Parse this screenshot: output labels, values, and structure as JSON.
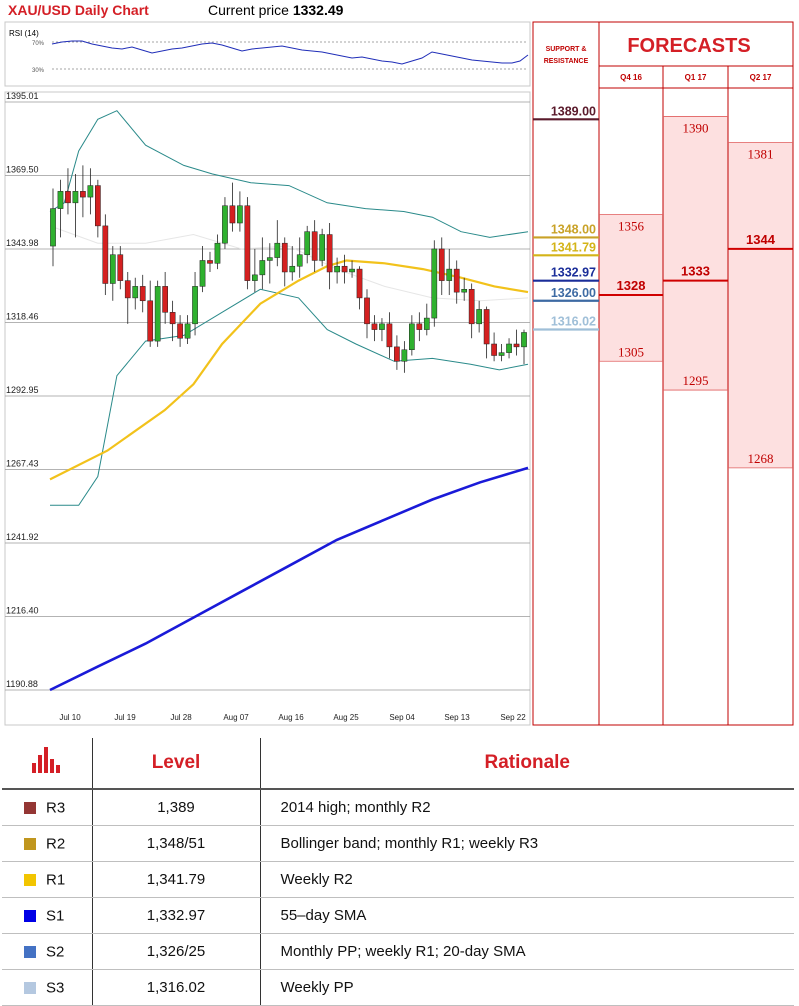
{
  "header": {
    "title": "XAU/USD Daily Chart",
    "price_label": "Current price",
    "price_value": "1332.49"
  },
  "rsi_panel": {
    "label": "RSI (14)",
    "upper_level": "70%",
    "lower_level": "30%"
  },
  "chart_data": {
    "type": "candlestick",
    "y_ticks": [
      "1395.01",
      "1369.50",
      "1343.98",
      "1318.46",
      "1292.95",
      "1267.43",
      "1241.92",
      "1216.40",
      "1190.88"
    ],
    "ylim": [
      1190.88,
      1395.01
    ],
    "x_ticks": [
      "Jul 10",
      "Jul 19",
      "Jul 28",
      "Aug 07",
      "Aug 16",
      "Aug 25",
      "Sep 04",
      "Sep 13",
      "Sep 22"
    ],
    "candles": [
      {
        "o": 1345,
        "h": 1365,
        "l": 1338,
        "c": 1358
      },
      {
        "o": 1358,
        "h": 1368,
        "l": 1348,
        "c": 1364
      },
      {
        "o": 1364,
        "h": 1372,
        "l": 1356,
        "c": 1360
      },
      {
        "o": 1360,
        "h": 1370,
        "l": 1348,
        "c": 1364
      },
      {
        "o": 1364,
        "h": 1373,
        "l": 1355,
        "c": 1362
      },
      {
        "o": 1362,
        "h": 1372,
        "l": 1356,
        "c": 1366
      },
      {
        "o": 1366,
        "h": 1368,
        "l": 1348,
        "c": 1352
      },
      {
        "o": 1352,
        "h": 1356,
        "l": 1328,
        "c": 1332
      },
      {
        "o": 1332,
        "h": 1345,
        "l": 1326,
        "c": 1342
      },
      {
        "o": 1342,
        "h": 1345,
        "l": 1330,
        "c": 1333
      },
      {
        "o": 1333,
        "h": 1336,
        "l": 1318,
        "c": 1327
      },
      {
        "o": 1327,
        "h": 1334,
        "l": 1323,
        "c": 1331
      },
      {
        "o": 1331,
        "h": 1335,
        "l": 1322,
        "c": 1326
      },
      {
        "o": 1326,
        "h": 1333,
        "l": 1310,
        "c": 1312
      },
      {
        "o": 1312,
        "h": 1333,
        "l": 1310,
        "c": 1331
      },
      {
        "o": 1331,
        "h": 1336,
        "l": 1318,
        "c": 1322
      },
      {
        "o": 1322,
        "h": 1326,
        "l": 1312,
        "c": 1318
      },
      {
        "o": 1318,
        "h": 1321,
        "l": 1310,
        "c": 1313
      },
      {
        "o": 1313,
        "h": 1321,
        "l": 1311,
        "c": 1318
      },
      {
        "o": 1318,
        "h": 1336,
        "l": 1314,
        "c": 1331
      },
      {
        "o": 1331,
        "h": 1345,
        "l": 1329,
        "c": 1340
      },
      {
        "o": 1340,
        "h": 1343,
        "l": 1336,
        "c": 1339
      },
      {
        "o": 1339,
        "h": 1349,
        "l": 1337,
        "c": 1346
      },
      {
        "o": 1346,
        "h": 1362,
        "l": 1344,
        "c": 1359
      },
      {
        "o": 1359,
        "h": 1367,
        "l": 1350,
        "c": 1353
      },
      {
        "o": 1353,
        "h": 1364,
        "l": 1350,
        "c": 1359
      },
      {
        "o": 1359,
        "h": 1362,
        "l": 1330,
        "c": 1333
      },
      {
        "o": 1333,
        "h": 1344,
        "l": 1329,
        "c": 1335
      },
      {
        "o": 1335,
        "h": 1348,
        "l": 1330,
        "c": 1340
      },
      {
        "o": 1340,
        "h": 1346,
        "l": 1332,
        "c": 1341
      },
      {
        "o": 1341,
        "h": 1354,
        "l": 1338,
        "c": 1346
      },
      {
        "o": 1346,
        "h": 1348,
        "l": 1331,
        "c": 1336
      },
      {
        "o": 1336,
        "h": 1345,
        "l": 1333,
        "c": 1338
      },
      {
        "o": 1338,
        "h": 1348,
        "l": 1334,
        "c": 1342
      },
      {
        "o": 1342,
        "h": 1352,
        "l": 1339,
        "c": 1350
      },
      {
        "o": 1350,
        "h": 1354,
        "l": 1336,
        "c": 1340
      },
      {
        "o": 1340,
        "h": 1351,
        "l": 1338,
        "c": 1349
      },
      {
        "o": 1349,
        "h": 1353,
        "l": 1330,
        "c": 1336
      },
      {
        "o": 1336,
        "h": 1341,
        "l": 1332,
        "c": 1338
      },
      {
        "o": 1338,
        "h": 1342,
        "l": 1332,
        "c": 1336
      },
      {
        "o": 1336,
        "h": 1340,
        "l": 1334,
        "c": 1337
      },
      {
        "o": 1337,
        "h": 1338,
        "l": 1323,
        "c": 1327
      },
      {
        "o": 1327,
        "h": 1330,
        "l": 1313,
        "c": 1318
      },
      {
        "o": 1318,
        "h": 1321,
        "l": 1312,
        "c": 1316
      },
      {
        "o": 1316,
        "h": 1320,
        "l": 1312,
        "c": 1318
      },
      {
        "o": 1318,
        "h": 1322,
        "l": 1306,
        "c": 1310
      },
      {
        "o": 1310,
        "h": 1314,
        "l": 1302,
        "c": 1305
      },
      {
        "o": 1305,
        "h": 1312,
        "l": 1301,
        "c": 1309
      },
      {
        "o": 1309,
        "h": 1321,
        "l": 1307,
        "c": 1318
      },
      {
        "o": 1318,
        "h": 1322,
        "l": 1312,
        "c": 1316
      },
      {
        "o": 1316,
        "h": 1325,
        "l": 1314,
        "c": 1320
      },
      {
        "o": 1320,
        "h": 1347,
        "l": 1317,
        "c": 1344
      },
      {
        "o": 1344,
        "h": 1348,
        "l": 1328,
        "c": 1333
      },
      {
        "o": 1333,
        "h": 1344,
        "l": 1328,
        "c": 1337
      },
      {
        "o": 1337,
        "h": 1340,
        "l": 1325,
        "c": 1329
      },
      {
        "o": 1329,
        "h": 1334,
        "l": 1326,
        "c": 1330
      },
      {
        "o": 1330,
        "h": 1332,
        "l": 1313,
        "c": 1318
      },
      {
        "o": 1318,
        "h": 1326,
        "l": 1315,
        "c": 1323
      },
      {
        "o": 1323,
        "h": 1324,
        "l": 1306,
        "c": 1311
      },
      {
        "o": 1311,
        "h": 1315,
        "l": 1305,
        "c": 1307
      },
      {
        "o": 1307,
        "h": 1311,
        "l": 1305,
        "c": 1308
      },
      {
        "o": 1308,
        "h": 1313,
        "l": 1306,
        "c": 1311
      },
      {
        "o": 1311,
        "h": 1316,
        "l": 1307,
        "c": 1310
      },
      {
        "o": 1310,
        "h": 1316,
        "l": 1304,
        "c": 1315
      }
    ],
    "sma_yellow": [
      [
        0,
        1264
      ],
      [
        0.12,
        1274
      ],
      [
        0.24,
        1288
      ],
      [
        0.3,
        1297
      ],
      [
        0.36,
        1311
      ],
      [
        0.44,
        1325
      ],
      [
        0.52,
        1333
      ],
      [
        0.58,
        1338
      ],
      [
        0.62,
        1340
      ],
      [
        0.7,
        1339
      ],
      [
        0.78,
        1337
      ],
      [
        0.86,
        1334
      ],
      [
        0.93,
        1331
      ],
      [
        1,
        1329
      ]
    ],
    "sma_blue": [
      [
        0,
        1190.88
      ],
      [
        0.1,
        1199
      ],
      [
        0.2,
        1207
      ],
      [
        0.3,
        1216
      ],
      [
        0.4,
        1225
      ],
      [
        0.5,
        1234
      ],
      [
        0.6,
        1243
      ],
      [
        0.7,
        1250
      ],
      [
        0.8,
        1257
      ],
      [
        0.9,
        1263
      ],
      [
        1,
        1268
      ]
    ],
    "bb_upper": [
      [
        0,
        1357
      ],
      [
        0.03,
        1360
      ],
      [
        0.06,
        1378
      ],
      [
        0.1,
        1389
      ],
      [
        0.14,
        1392
      ],
      [
        0.2,
        1380
      ],
      [
        0.28,
        1373
      ],
      [
        0.34,
        1370
      ],
      [
        0.42,
        1367
      ],
      [
        0.5,
        1366
      ],
      [
        0.58,
        1360
      ],
      [
        0.66,
        1358
      ],
      [
        0.74,
        1357
      ],
      [
        0.8,
        1355
      ],
      [
        0.86,
        1350
      ],
      [
        0.92,
        1348
      ],
      [
        1,
        1350
      ]
    ],
    "bb_lower": [
      [
        0,
        1255
      ],
      [
        0.06,
        1255
      ],
      [
        0.1,
        1265
      ],
      [
        0.14,
        1300
      ],
      [
        0.2,
        1312
      ],
      [
        0.28,
        1314
      ],
      [
        0.36,
        1322
      ],
      [
        0.44,
        1330
      ],
      [
        0.52,
        1327
      ],
      [
        0.58,
        1316
      ],
      [
        0.64,
        1311
      ],
      [
        0.72,
        1305
      ],
      [
        0.8,
        1306
      ],
      [
        0.88,
        1304
      ],
      [
        0.94,
        1302
      ],
      [
        1,
        1304
      ]
    ],
    "bb_mid": [
      [
        0,
        1352
      ],
      [
        0.1,
        1346
      ],
      [
        0.2,
        1346
      ],
      [
        0.3,
        1349
      ],
      [
        0.4,
        1344
      ],
      [
        0.5,
        1345
      ],
      [
        0.6,
        1337
      ],
      [
        0.7,
        1331
      ],
      [
        0.8,
        1327
      ],
      [
        0.9,
        1326
      ],
      [
        1,
        1327
      ]
    ],
    "support_resistance": {
      "heading": "SUPPORT & RESISTANCE",
      "levels": [
        {
          "label": "1389.00",
          "value": 1389.0,
          "color": "#5a1a2b"
        },
        {
          "label": "1348.00",
          "value": 1348.0,
          "color": "#c9a227"
        },
        {
          "label": "1341.79",
          "value": 1341.79,
          "color": "#d4b418"
        },
        {
          "label": "1332.97",
          "value": 1332.97,
          "color": "#1a2d99"
        },
        {
          "label": "1326.00",
          "value": 1326.0,
          "color": "#3d6aa3"
        },
        {
          "label": "1316.02",
          "value": 1316.02,
          "color": "#9fbfd8"
        }
      ]
    },
    "forecasts": {
      "title": "FORECASTS",
      "columns": [
        {
          "label": "Q4 16",
          "high": 1356,
          "mid": 1328,
          "low": 1305
        },
        {
          "label": "Q1 17",
          "high": 1390,
          "mid": 1333,
          "low": 1295
        },
        {
          "label": "Q2 17",
          "high": 1381,
          "mid": 1344,
          "low": 1268
        }
      ]
    }
  },
  "table": {
    "headers": {
      "level": "Level",
      "rationale": "Rationale"
    },
    "rows": [
      {
        "code": "R3",
        "level": "1,389",
        "rationale": "2014 high; monthly R2",
        "color": "#943634"
      },
      {
        "code": "R2",
        "level": "1,348/51",
        "rationale": "Bollinger band; monthly R1; weekly R3",
        "color": "#c0961e"
      },
      {
        "code": "R1",
        "level": "1,341.79",
        "rationale": "Weekly R2",
        "color": "#f2c500"
      },
      {
        "code": "S1",
        "level": "1,332.97",
        "rationale": "55–day SMA",
        "color": "#0000e6"
      },
      {
        "code": "S2",
        "level": "1,326/25",
        "rationale": "Monthly PP; weekly R1; 20-day SMA",
        "color": "#4472c4"
      },
      {
        "code": "S3",
        "level": "1,316.02",
        "rationale": "Weekly PP",
        "color": "#b4c8e0"
      }
    ]
  }
}
